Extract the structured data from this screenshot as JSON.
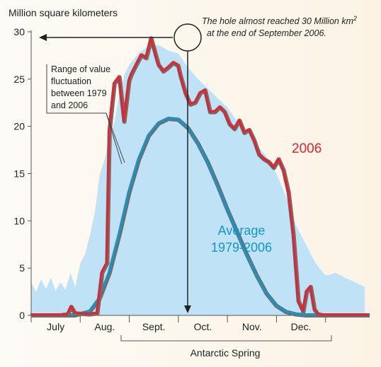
{
  "chart_data": {
    "type": "area",
    "ylabel": "Million square kilometers",
    "ylim": [
      0,
      30
    ],
    "yticks": [
      0,
      5,
      10,
      15,
      20,
      25,
      30
    ],
    "xlim_months": [
      6.0,
      12.9
    ],
    "month_labels": [
      {
        "label": "July",
        "month": 6.5
      },
      {
        "label": "Aug.",
        "month": 7.5
      },
      {
        "label": "Sept.",
        "month": 8.5
      },
      {
        "label": "Oct.",
        "month": 9.5
      },
      {
        "label": "Nov.",
        "month": 10.5
      },
      {
        "label": "Dec.",
        "month": 11.5
      }
    ],
    "series": [
      {
        "name": "2006",
        "color": "#e32530",
        "x": [
          6.0,
          6.6,
          6.75,
          6.82,
          6.9,
          7.2,
          7.35,
          7.45,
          7.55,
          7.6,
          7.7,
          7.8,
          7.9,
          8.0,
          8.05,
          8.15,
          8.25,
          8.35,
          8.45,
          8.55,
          8.6,
          8.7,
          8.8,
          8.9,
          9.0,
          9.05,
          9.15,
          9.25,
          9.35,
          9.45,
          9.55,
          9.65,
          9.75,
          9.85,
          9.95,
          10.05,
          10.15,
          10.25,
          10.35,
          10.45,
          10.55,
          10.65,
          10.75,
          10.85,
          10.95,
          11.05,
          11.15,
          11.25,
          11.35,
          11.45,
          11.55,
          11.62,
          11.7,
          11.78,
          11.85,
          11.95,
          12.3,
          12.9
        ],
        "values": [
          0,
          0,
          0.1,
          0.9,
          0.2,
          0.1,
          0.2,
          4.5,
          5.5,
          19.5,
          24.5,
          25.2,
          20.5,
          24.8,
          25.5,
          26.5,
          27.5,
          27.2,
          29.3,
          27.4,
          26.5,
          25.8,
          26.2,
          26.7,
          26.4,
          25.3,
          23.5,
          22.3,
          22.5,
          23.5,
          23.8,
          21.5,
          21.5,
          22.0,
          21.5,
          20.2,
          19.7,
          20.6,
          19.3,
          19.6,
          18.5,
          17.0,
          16.5,
          16.2,
          15.6,
          16.5,
          15.3,
          13.0,
          8.5,
          1.5,
          0.4,
          2.5,
          3.0,
          0.6,
          0.1,
          0,
          0,
          0
        ]
      },
      {
        "name": "Average 1979-2006",
        "color": "#1496c8",
        "x": [
          6.0,
          6.9,
          7.2,
          7.4,
          7.6,
          7.8,
          8.0,
          8.2,
          8.4,
          8.6,
          8.8,
          9.0,
          9.2,
          9.4,
          9.6,
          9.8,
          10.0,
          10.2,
          10.4,
          10.6,
          10.8,
          11.0,
          11.2,
          11.4,
          11.6,
          11.8,
          12.0,
          12.9
        ],
        "values": [
          0,
          0,
          0.4,
          1.8,
          4.5,
          8.5,
          13.0,
          16.5,
          19.0,
          20.3,
          20.8,
          20.7,
          19.8,
          18.2,
          16.2,
          13.8,
          11.2,
          8.8,
          6.4,
          4.2,
          2.3,
          1.0,
          0.35,
          0.1,
          0,
          0,
          0,
          0
        ]
      },
      {
        "name": "Range of value fluctuation between 1979 and 2006",
        "color": "#bfe2f7",
        "x": [
          6.0,
          6.1,
          6.2,
          6.3,
          6.4,
          6.5,
          6.6,
          6.7,
          6.8,
          6.9,
          7.0,
          7.1,
          7.2,
          7.3,
          7.4,
          7.5,
          7.6,
          7.7,
          7.8,
          7.9,
          8.0,
          8.2,
          8.4,
          8.6,
          8.8,
          9.0,
          9.2,
          9.4,
          9.6,
          9.8,
          10.0,
          10.2,
          10.4,
          10.6,
          10.8,
          11.0,
          11.2,
          11.4,
          11.6,
          11.8,
          12.0,
          12.2,
          12.4,
          12.6,
          12.8
        ],
        "values": [
          3.5,
          2.5,
          3.8,
          2.8,
          4.0,
          2.6,
          3.5,
          2.7,
          4.5,
          3.0,
          5.5,
          6.5,
          8.5,
          11.0,
          15.0,
          16.5,
          19.0,
          20.5,
          23.5,
          25.5,
          26.5,
          27.8,
          28.5,
          28.6,
          28.0,
          27.7,
          26.2,
          25.0,
          24.0,
          23.0,
          22.0,
          20.5,
          19.5,
          18.0,
          16.8,
          15.0,
          12.5,
          9.5,
          7.5,
          5.5,
          4.2,
          4.5,
          4.0,
          3.5,
          3.0
        ]
      }
    ]
  },
  "annotations": {
    "peak_note_line1": "The hole almost reached 30 Million km",
    "peak_note_sup": "2",
    "peak_note_line2": "at the end of September 2006.",
    "range_note": [
      "Range of value",
      "fluctuation",
      "between 1979",
      "and 2006"
    ],
    "label_2006": "2006",
    "label_average_1": "Average",
    "label_average_2": "1979-2006",
    "spring_label": "Antarctic Spring"
  },
  "colors": {
    "axis": "#555555",
    "red": "#e32530",
    "blue": "#1496c8",
    "gray": "#6e6e6e",
    "range": "#bfe2f7"
  }
}
